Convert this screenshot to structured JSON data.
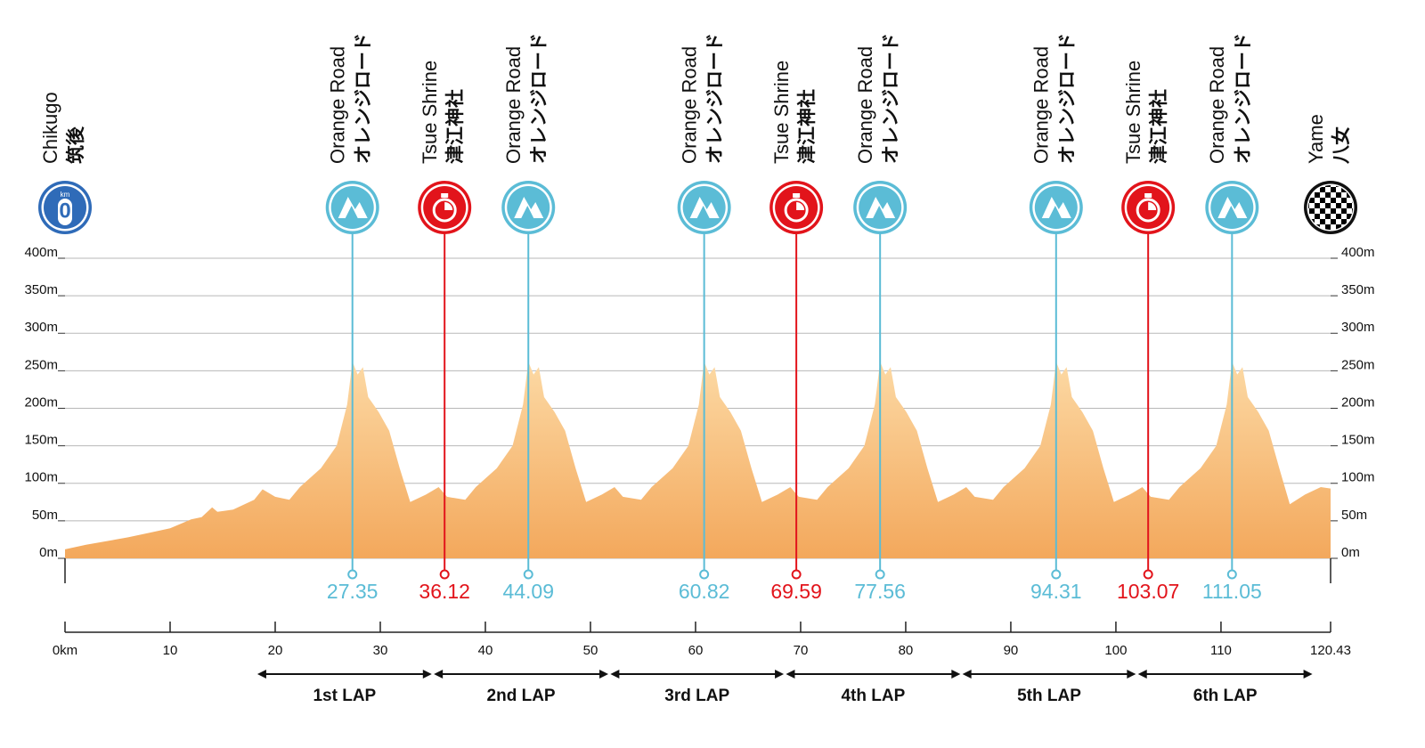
{
  "chart_data": {
    "type": "area",
    "x": [
      0,
      2,
      4,
      6,
      8,
      10,
      12,
      13,
      14,
      14.5,
      16,
      18,
      18.8,
      20,
      21.35,
      22.35,
      24.35,
      25.85,
      26.85,
      27.35,
      27.85,
      28.35,
      28.85,
      29.85,
      30.85,
      31.85,
      32.85,
      34.35,
      35.55,
      36.35,
      38.09,
      39.09,
      41.09,
      42.59,
      43.59,
      44.09,
      44.59,
      45.09,
      45.59,
      46.59,
      47.59,
      48.59,
      49.59,
      51.09,
      52.29,
      53.09,
      54.82,
      55.82,
      57.82,
      59.32,
      60.32,
      60.82,
      61.32,
      61.82,
      62.32,
      63.32,
      64.32,
      65.32,
      66.32,
      67.82,
      69.02,
      69.82,
      71.56,
      72.56,
      74.56,
      76.06,
      77.06,
      77.56,
      78.06,
      78.56,
      79.06,
      80.06,
      81.06,
      82.06,
      83.06,
      84.56,
      85.76,
      86.56,
      88.31,
      89.31,
      91.31,
      92.81,
      93.81,
      94.31,
      94.81,
      95.31,
      95.81,
      96.81,
      97.81,
      98.81,
      99.81,
      101.31,
      102.51,
      103.31,
      105.05,
      106.05,
      108.05,
      109.55,
      110.55,
      111.05,
      111.55,
      112.05,
      112.55,
      113.55,
      114.55,
      115.55,
      116.55,
      118,
      119.5,
      120.43
    ],
    "values": [
      12,
      18,
      23,
      28,
      34,
      40,
      52,
      55,
      68,
      62,
      65,
      78,
      92,
      82,
      78,
      95,
      120,
      150,
      205,
      262,
      245,
      255,
      215,
      195,
      170,
      120,
      75,
      85,
      95,
      82,
      78,
      95,
      120,
      150,
      205,
      262,
      245,
      255,
      215,
      195,
      170,
      120,
      75,
      85,
      95,
      82,
      78,
      95,
      120,
      150,
      205,
      262,
      245,
      255,
      215,
      195,
      170,
      120,
      75,
      85,
      95,
      82,
      78,
      95,
      120,
      150,
      205,
      262,
      245,
      255,
      215,
      195,
      170,
      120,
      75,
      85,
      95,
      82,
      78,
      95,
      120,
      150,
      205,
      262,
      245,
      255,
      215,
      195,
      170,
      120,
      75,
      85,
      95,
      82,
      78,
      95,
      120,
      150,
      205,
      262,
      245,
      255,
      215,
      195,
      170,
      120,
      72,
      85,
      95,
      93
    ],
    "color_top": "#fcd9a4",
    "color_bottom": "#f3a85c",
    "xlim": [
      0,
      120.43
    ],
    "ylim": [
      0,
      400
    ],
    "xticks": [
      {
        "value": 0,
        "label": "0km"
      },
      10,
      20,
      30,
      40,
      50,
      60,
      70,
      80,
      90,
      100,
      110,
      120.43
    ],
    "yticks": [
      {
        "value": 0,
        "label": "0m"
      },
      {
        "value": 50,
        "label": "50m"
      },
      {
        "value": 100,
        "label": "100m"
      },
      {
        "value": 150,
        "label": "150m"
      },
      {
        "value": 200,
        "label": "200m"
      },
      {
        "value": 250,
        "label": "250m"
      },
      {
        "value": 300,
        "label": "300m"
      },
      {
        "value": 350,
        "label": "350m"
      },
      {
        "value": 400,
        "label": "400m"
      }
    ],
    "grid": true,
    "markers": [
      {
        "kind": "start",
        "km": 0,
        "name": "Chikugo",
        "name_ja": "筑後",
        "color": "#2f6bb8",
        "icon_unit": "km",
        "icon_text": "0"
      },
      {
        "kind": "kom",
        "km": 27.35,
        "name": "Orange Road",
        "name_ja": "オレンジロード",
        "color": "#5bbcd6"
      },
      {
        "kind": "sprint",
        "km": 36.12,
        "name": "Tsue Shrine",
        "name_ja": "津江神社",
        "color": "#e2141b"
      },
      {
        "kind": "kom",
        "km": 44.09,
        "name": "Orange Road",
        "name_ja": "オレンジロード",
        "color": "#5bbcd6"
      },
      {
        "kind": "kom",
        "km": 60.82,
        "name": "Orange Road",
        "name_ja": "オレンジロード",
        "color": "#5bbcd6"
      },
      {
        "kind": "sprint",
        "km": 69.59,
        "name": "Tsue Shrine",
        "name_ja": "津江神社",
        "color": "#e2141b"
      },
      {
        "kind": "kom",
        "km": 77.56,
        "name": "Orange Road",
        "name_ja": "オレンジロード",
        "color": "#5bbcd6"
      },
      {
        "kind": "kom",
        "km": 94.31,
        "name": "Orange Road",
        "name_ja": "オレンジロード",
        "color": "#5bbcd6"
      },
      {
        "kind": "sprint",
        "km": 103.07,
        "name": "Tsue Shrine",
        "name_ja": "津江神社",
        "color": "#e2141b"
      },
      {
        "kind": "kom",
        "km": 111.05,
        "name": "Orange Road",
        "name_ja": "オレンジロード",
        "color": "#5bbcd6"
      },
      {
        "kind": "finish",
        "km": 120.43,
        "name": "Yame",
        "name_ja": "八女",
        "color": "#111111"
      }
    ],
    "laps": [
      {
        "label": "1st LAP",
        "start": 18.3,
        "end": 34.9
      },
      {
        "label": "2nd LAP",
        "start": 35.1,
        "end": 51.7
      },
      {
        "label": "3rd LAP",
        "start": 51.9,
        "end": 68.4
      },
      {
        "label": "4th LAP",
        "start": 68.6,
        "end": 85.2
      },
      {
        "label": "5th LAP",
        "start": 85.4,
        "end": 101.9
      },
      {
        "label": "6th LAP",
        "start": 102.1,
        "end": 118.7
      }
    ]
  }
}
